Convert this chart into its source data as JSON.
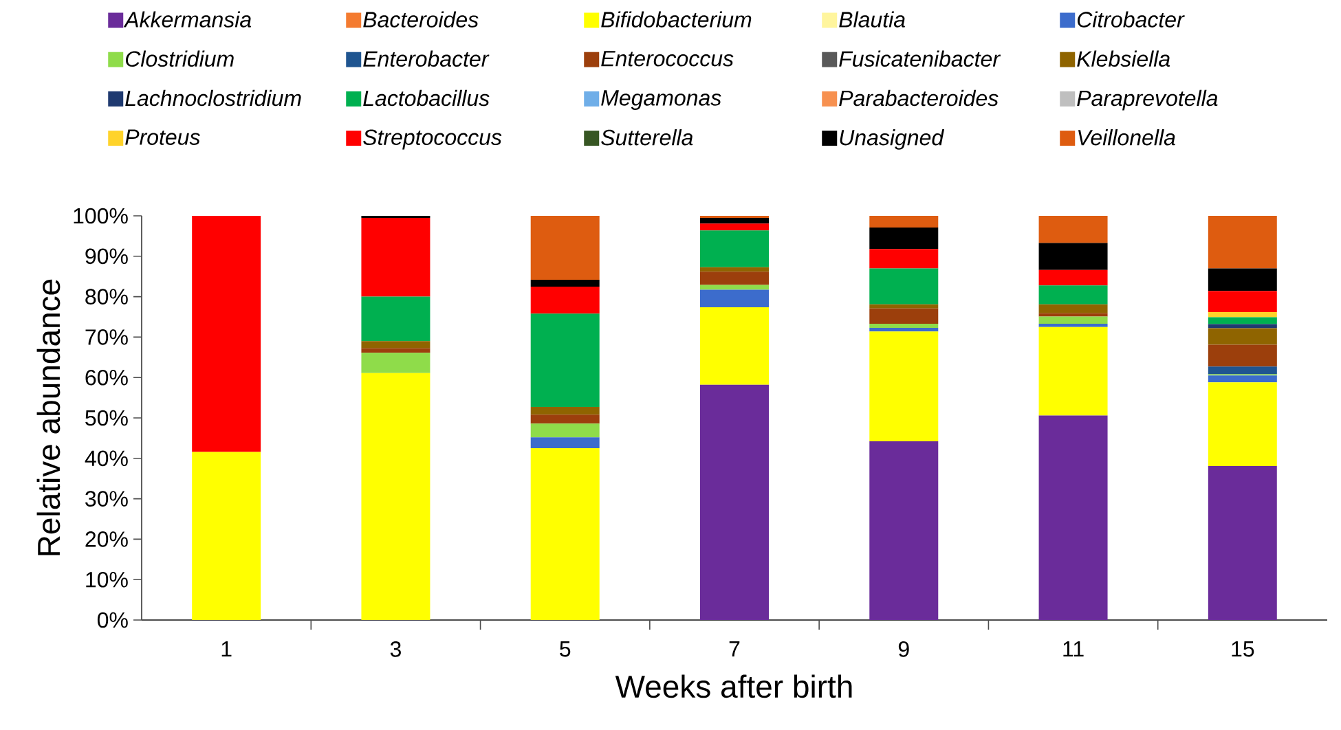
{
  "chart_data": {
    "type": "bar",
    "stacked": true,
    "xlabel": "Weeks after birth",
    "ylabel": "Relative abundance",
    "categories": [
      "1",
      "3",
      "5",
      "7",
      "9",
      "11",
      "15"
    ],
    "ylim": [
      0,
      100
    ],
    "yticks": [
      {
        "value": 0,
        "label": "0%"
      },
      {
        "value": 10,
        "label": "10%"
      },
      {
        "value": 20,
        "label": "20%"
      },
      {
        "value": 30,
        "label": "30%"
      },
      {
        "value": 40,
        "label": "40%"
      },
      {
        "value": 50,
        "label": "50%"
      },
      {
        "value": 60,
        "label": "60%"
      },
      {
        "value": 70,
        "label": "70%"
      },
      {
        "value": 80,
        "label": "80%"
      },
      {
        "value": 90,
        "label": "90%"
      },
      {
        "value": 100,
        "label": "100%"
      }
    ],
    "legend": "top",
    "grid": false,
    "series": [
      {
        "name": "Akkermansia",
        "color": "#6a2c9a",
        "values": [
          0,
          0,
          0,
          58.2,
          44.2,
          50.6,
          38.1
        ]
      },
      {
        "name": "Bacteroides",
        "color": "#f47b30",
        "values": [
          0,
          0,
          0,
          0,
          0,
          0,
          0
        ]
      },
      {
        "name": "Bifidobacterium",
        "color": "#ffff00",
        "values": [
          41.6,
          61.1,
          42.5,
          19.2,
          27.2,
          21.9,
          20.7
        ]
      },
      {
        "name": "Blautia",
        "color": "#fff59d",
        "values": [
          0,
          0,
          0,
          0,
          0,
          0,
          0
        ]
      },
      {
        "name": "Citrobacter",
        "color": "#3c6ccc",
        "values": [
          0,
          0,
          2.7,
          4.3,
          0.9,
          0.8,
          1.7
        ]
      },
      {
        "name": "Clostridium",
        "color": "#8fdc4a",
        "values": [
          0,
          5.0,
          3.4,
          1.2,
          1.0,
          1.8,
          0.3
        ]
      },
      {
        "name": "Enterobacter",
        "color": "#1f5590",
        "values": [
          0,
          0,
          0,
          0,
          0,
          0,
          1.9
        ]
      },
      {
        "name": "Enterococcus",
        "color": "#9c3f0c",
        "values": [
          0,
          1.1,
          2.2,
          3.3,
          3.8,
          0.8,
          5.4
        ]
      },
      {
        "name": "Fusicatenibacter",
        "color": "#595959",
        "values": [
          0,
          0,
          0,
          0,
          0,
          0,
          0
        ]
      },
      {
        "name": "Klebsiella",
        "color": "#8f6400",
        "values": [
          0,
          1.8,
          1.9,
          1.1,
          1.0,
          2.2,
          4.1
        ]
      },
      {
        "name": "Lachnoclostridium",
        "color": "#1f3a70",
        "values": [
          0,
          0,
          0,
          0,
          0,
          0,
          1.0
        ]
      },
      {
        "name": "Lactobacillus",
        "color": "#00b050",
        "values": [
          0,
          11.0,
          23.1,
          9.1,
          8.9,
          4.7,
          1.7
        ]
      },
      {
        "name": "Megamonas",
        "color": "#6faee8",
        "values": [
          0,
          0,
          0,
          0,
          0,
          0,
          0
        ]
      },
      {
        "name": "Parabacteroides",
        "color": "#f79150",
        "values": [
          0,
          0,
          0,
          0,
          0,
          0,
          0
        ]
      },
      {
        "name": "Paraprevotella",
        "color": "#bfbfbf",
        "values": [
          0,
          0,
          0,
          0,
          0,
          0,
          0
        ]
      },
      {
        "name": "Proteus",
        "color": "#ffd32a",
        "values": [
          0,
          0,
          0,
          0,
          0,
          0,
          1.3
        ]
      },
      {
        "name": "Streptococcus",
        "color": "#ff0000",
        "values": [
          58.4,
          19.5,
          6.7,
          1.7,
          4.8,
          3.8,
          5.2
        ]
      },
      {
        "name": "Sutterella",
        "color": "#375623",
        "values": [
          0,
          0,
          0,
          0,
          0,
          0,
          0
        ]
      },
      {
        "name": "Unasigned",
        "color": "#000000",
        "values": [
          0,
          0.5,
          1.7,
          1.4,
          5.3,
          6.7,
          5.6
        ]
      },
      {
        "name": "Veillonella",
        "color": "#de5c10",
        "values": [
          0,
          0,
          15.8,
          0.5,
          2.9,
          6.7,
          13.0
        ]
      }
    ]
  }
}
